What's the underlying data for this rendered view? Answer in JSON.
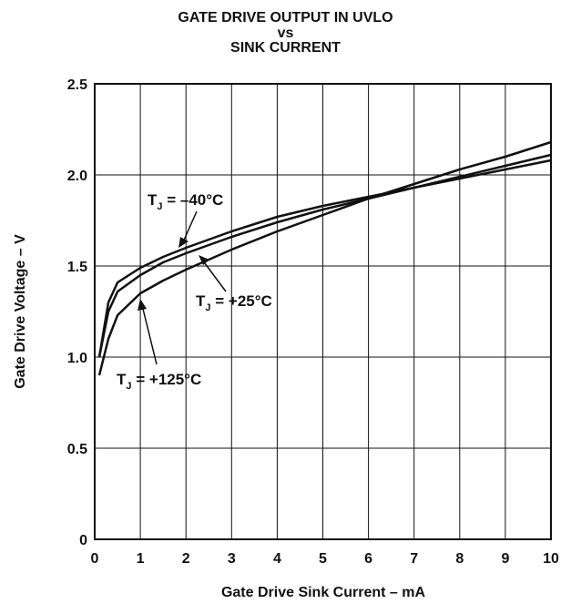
{
  "chart_data": {
    "type": "line",
    "title_lines": [
      "GATE DRIVE OUTPUT IN UVLO",
      "vs",
      "SINK CURRENT"
    ],
    "xlabel": "Gate Drive Sink Current – mA",
    "ylabel": "Gate Drive Voltage – V",
    "xlim": [
      0,
      10
    ],
    "ylim": [
      0,
      2.5
    ],
    "xticks": [
      "0",
      "1",
      "2",
      "3",
      "4",
      "5",
      "6",
      "7",
      "8",
      "9",
      "10"
    ],
    "yticks": [
      "0",
      "0.5",
      "1.0",
      "1.5",
      "2.0",
      "2.5"
    ],
    "grid": true,
    "series": [
      {
        "name": "T_J = –40°C",
        "label_main": "T",
        "label_sub": "J",
        "label_rest": " = –40°C",
        "x": [
          0.1,
          0.3,
          0.5,
          1,
          1.5,
          2,
          3,
          4,
          5,
          6,
          7,
          8,
          9,
          10
        ],
        "y": [
          1.0,
          1.3,
          1.41,
          1.49,
          1.55,
          1.6,
          1.69,
          1.77,
          1.83,
          1.88,
          1.93,
          1.98,
          2.03,
          2.08
        ]
      },
      {
        "name": "T_J = +25°C",
        "label_main": "T",
        "label_sub": "J",
        "label_rest": " = +25°C",
        "x": [
          0.1,
          0.3,
          0.5,
          1,
          1.5,
          2,
          3,
          4,
          5,
          6,
          7,
          8,
          9,
          10
        ],
        "y": [
          1.0,
          1.25,
          1.36,
          1.45,
          1.52,
          1.57,
          1.66,
          1.74,
          1.81,
          1.87,
          1.93,
          1.99,
          2.05,
          2.11
        ]
      },
      {
        "name": "T_J = +125°C",
        "label_main": "T",
        "label_sub": "J",
        "label_rest": " = +125°C",
        "x": [
          0.1,
          0.3,
          0.5,
          1,
          1.5,
          2,
          3,
          4,
          5,
          6,
          7,
          8,
          9,
          10
        ],
        "y": [
          0.9,
          1.1,
          1.23,
          1.35,
          1.42,
          1.48,
          1.59,
          1.69,
          1.78,
          1.87,
          1.95,
          2.03,
          2.1,
          2.18
        ]
      }
    ]
  }
}
